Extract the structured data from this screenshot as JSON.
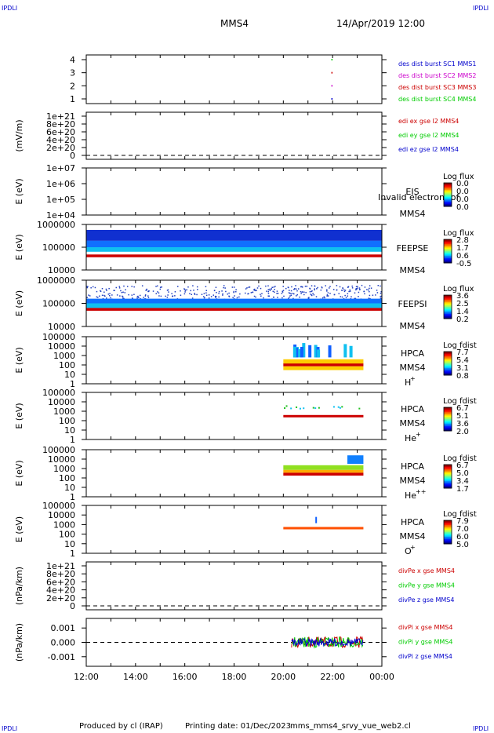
{
  "header": {
    "spacecraft": "MMS4",
    "date_time": "14/Apr/2019 12:00",
    "corner_label": "IPDLI"
  },
  "footer": {
    "produced_by": "Produced by cl (IRAP)",
    "printing_date": "Printing date: 01/Dec/2023",
    "file_name": "mms_mms4_srvy_vue_web2.cl"
  },
  "colors": {
    "mms1": "#0000cc",
    "mms2": "#cc00cc",
    "mms3": "#cc0000",
    "mms4": "#00cc00",
    "x": "#cc0000",
    "y": "#00cc00",
    "z": "#0000cc",
    "frame": "#000000"
  },
  "chart_data": {
    "type": "multi-panel time series",
    "x_axis": {
      "range": [
        "12:00",
        "00:00"
      ],
      "ticks": [
        "12:00",
        "14:00",
        "16:00",
        "18:00",
        "20:00",
        "22:00",
        "00:00"
      ]
    },
    "panels": [
      {
        "id": "burst",
        "type": "scatter",
        "ylabel": "",
        "yticks": [
          "4",
          "3",
          "2",
          "1"
        ],
        "legend": [
          {
            "label": "des dist burst SC1 MMS1",
            "color": "mms1"
          },
          {
            "label": "des dist burst SC2 MMS2",
            "color": "mms2"
          },
          {
            "label": "des dist burst SC3 MMS3",
            "color": "mms3"
          },
          {
            "label": "des dist burst SC4 MMS4",
            "color": "mms4"
          }
        ],
        "points": [
          {
            "time": "21:57",
            "sc": 4
          },
          {
            "time": "21:57",
            "sc": 3
          },
          {
            "time": "21:57",
            "sc": 2
          },
          {
            "time": "21:57",
            "sc": 1
          }
        ]
      },
      {
        "id": "edi",
        "type": "line",
        "ylabel": "(mV/m)",
        "yticks": [
          "1e+21",
          "8e+20",
          "6e+20",
          "4e+20",
          "2e+20",
          "0"
        ],
        "legend": [
          {
            "label": "edi ex gse l2 MMS4",
            "color": "x"
          },
          {
            "label": "edi ey gse l2 MMS4",
            "color": "y"
          },
          {
            "label": "edi ez gse l2 MMS4",
            "color": "z"
          }
        ]
      },
      {
        "id": "eis",
        "type": "heatmap",
        "ylabel": "E (eV)",
        "yticks": [
          "1e+07",
          "1e+06",
          "1e+05",
          "1e+04"
        ],
        "instrument": [
          "EIS",
          "MMS4"
        ],
        "overlay_text": "Invalid electron tof",
        "colorbar_title": "Log flux",
        "colorbar_ticks": [
          "0.0",
          "0.0",
          "0.0",
          "0.0"
        ]
      },
      {
        "id": "feeps_e",
        "type": "heatmap",
        "ylabel": "E (eV)",
        "yticks": [
          "1000000",
          "100000",
          "10000"
        ],
        "instrument": [
          "FEEPSE",
          "MMS4"
        ],
        "colorbar_title": "Log flux",
        "colorbar_ticks": [
          "2.8",
          "1.7",
          "0.6",
          "-0.5"
        ],
        "coverage": [
          "12:00",
          "00:00"
        ]
      },
      {
        "id": "feeps_i",
        "type": "heatmap",
        "ylabel": "E (eV)",
        "yticks": [
          "1000000",
          "100000",
          "10000"
        ],
        "instrument": [
          "FEEPSI",
          "MMS4"
        ],
        "colorbar_title": "Log flux",
        "colorbar_ticks": [
          "3.6",
          "2.5",
          "1.4",
          "0.2"
        ],
        "coverage": [
          "12:00",
          "00:00"
        ]
      },
      {
        "id": "hpca_h",
        "type": "heatmap",
        "ylabel": "E (eV)",
        "yticks": [
          "100000",
          "10000",
          "1000",
          "100",
          "10",
          "1"
        ],
        "instrument": [
          "HPCA",
          "MMS4"
        ],
        "species": "H",
        "charge": "+",
        "colorbar_title": "Log fdist",
        "colorbar_ticks": [
          "7.7",
          "5.4",
          "3.1",
          "0.8"
        ],
        "coverage": [
          "20:00",
          "23:15"
        ]
      },
      {
        "id": "hpca_he1",
        "type": "heatmap",
        "ylabel": "E (eV)",
        "yticks": [
          "100000",
          "10000",
          "1000",
          "100",
          "10",
          "1"
        ],
        "instrument": [
          "HPCA",
          "MMS4"
        ],
        "species": "He",
        "charge": "+",
        "colorbar_title": "Log fdist",
        "colorbar_ticks": [
          "6.7",
          "5.1",
          "3.6",
          "2.0"
        ],
        "coverage": [
          "20:00",
          "23:15"
        ]
      },
      {
        "id": "hpca_he2",
        "type": "heatmap",
        "ylabel": "E (eV)",
        "yticks": [
          "100000",
          "10000",
          "1000",
          "100",
          "10",
          "1"
        ],
        "instrument": [
          "HPCA",
          "MMS4"
        ],
        "species": "He",
        "charge": "++",
        "colorbar_title": "Log fdist",
        "colorbar_ticks": [
          "6.7",
          "5.0",
          "3.4",
          "1.7"
        ],
        "coverage": [
          "20:00",
          "23:15"
        ]
      },
      {
        "id": "hpca_o",
        "type": "heatmap",
        "ylabel": "E (eV)",
        "yticks": [
          "100000",
          "10000",
          "1000",
          "100",
          "10",
          "1"
        ],
        "instrument": [
          "HPCA",
          "MMS4"
        ],
        "species": "O",
        "charge": "+",
        "colorbar_title": "Log fdist",
        "colorbar_ticks": [
          "7.9",
          "7.0",
          "6.0",
          "5.0"
        ],
        "coverage": [
          "20:00",
          "23:15"
        ]
      },
      {
        "id": "divpe",
        "type": "line",
        "ylabel": "(nPa/km)",
        "yticks": [
          "1e+21",
          "8e+20",
          "6e+20",
          "4e+20",
          "2e+20",
          "0"
        ],
        "legend": [
          {
            "label": "divPe x gse MMS4",
            "color": "x"
          },
          {
            "label": "divPe y gse MMS4",
            "color": "y"
          },
          {
            "label": "divPe z gse MMS4",
            "color": "z"
          }
        ]
      },
      {
        "id": "divpi",
        "type": "line",
        "ylabel": "(nPa/km)",
        "yticks": [
          "0.001",
          "0.000",
          "-0.001"
        ],
        "ylim": [
          -0.0015,
          0.0015
        ],
        "legend": [
          {
            "label": "divPi x gse MMS4",
            "color": "x"
          },
          {
            "label": "divPi y gse MMS4",
            "color": "y"
          },
          {
            "label": "divPi z gse MMS4",
            "color": "z"
          }
        ],
        "coverage": [
          "20:20",
          "23:15"
        ]
      }
    ]
  }
}
